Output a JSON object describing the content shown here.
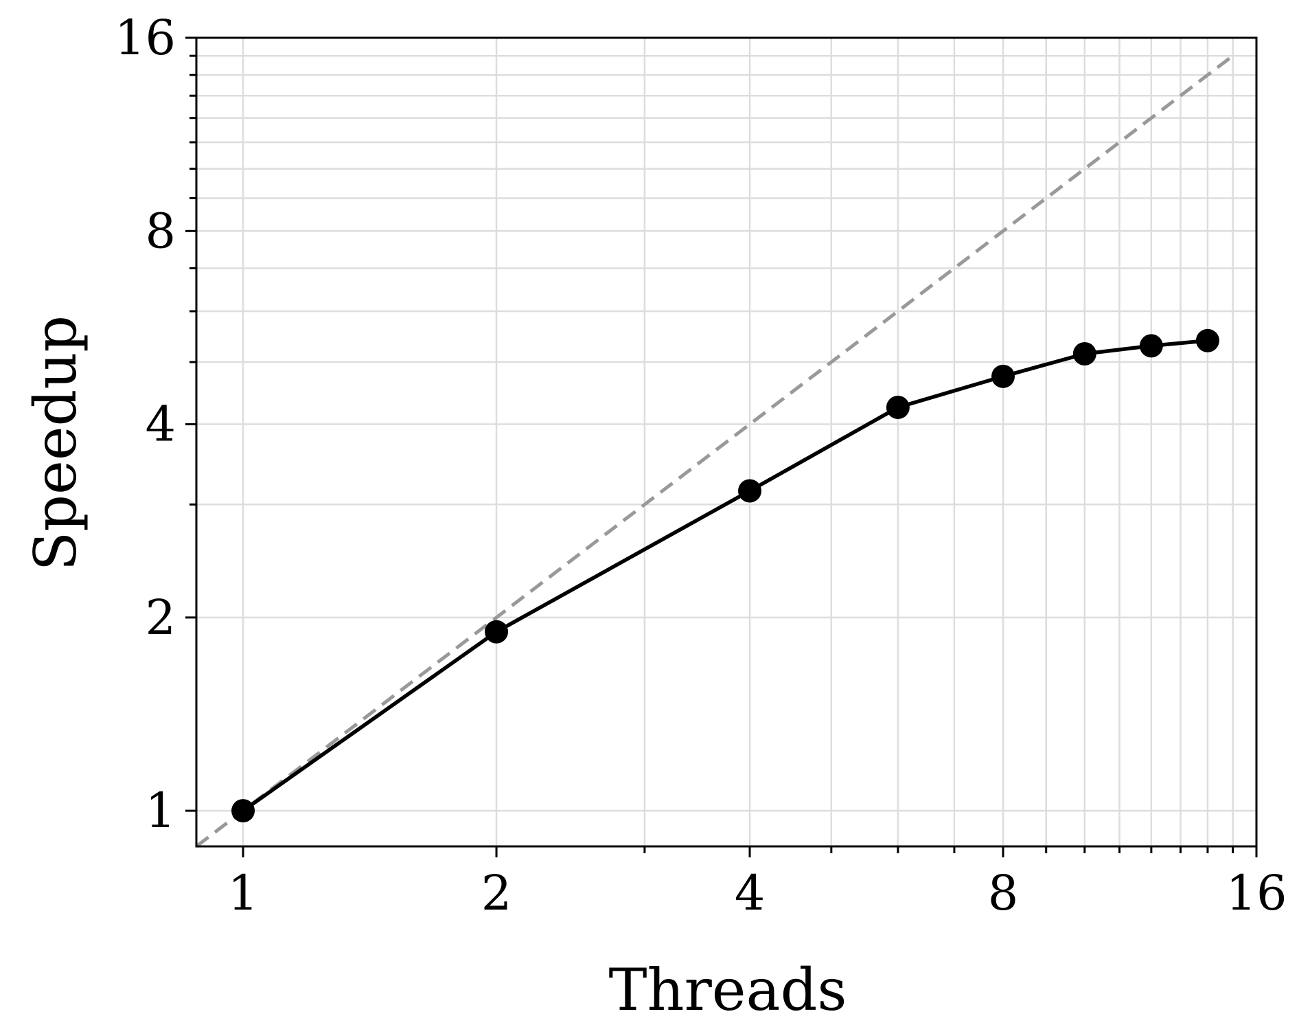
{
  "chart_data": {
    "type": "line",
    "xlabel": "Threads",
    "ylabel": "Speedup",
    "xscale": "log2",
    "yscale": "log2",
    "xlim": [
      0.88,
      16
    ],
    "ylim": [
      0.88,
      16
    ],
    "xticks": [
      1,
      2,
      4,
      8,
      16
    ],
    "xtick_labels": [
      "1",
      "2",
      "4",
      "8",
      "16"
    ],
    "yticks": [
      1,
      2,
      4,
      8,
      16
    ],
    "ytick_labels": [
      "1",
      "2",
      "4",
      "8",
      "16"
    ],
    "grid": true,
    "series": [
      {
        "x": [
          1,
          2,
          4,
          6,
          8,
          10,
          12,
          14
        ],
        "values": [
          1.0,
          1.9,
          3.15,
          4.25,
          4.75,
          5.15,
          5.3,
          5.4
        ],
        "color": "#000000",
        "style": "solid",
        "marker": "circle"
      },
      {
        "x": [
          0.88,
          15
        ],
        "values": [
          0.88,
          15
        ],
        "color": "#999999",
        "style": "dashed",
        "marker": "none"
      }
    ]
  }
}
